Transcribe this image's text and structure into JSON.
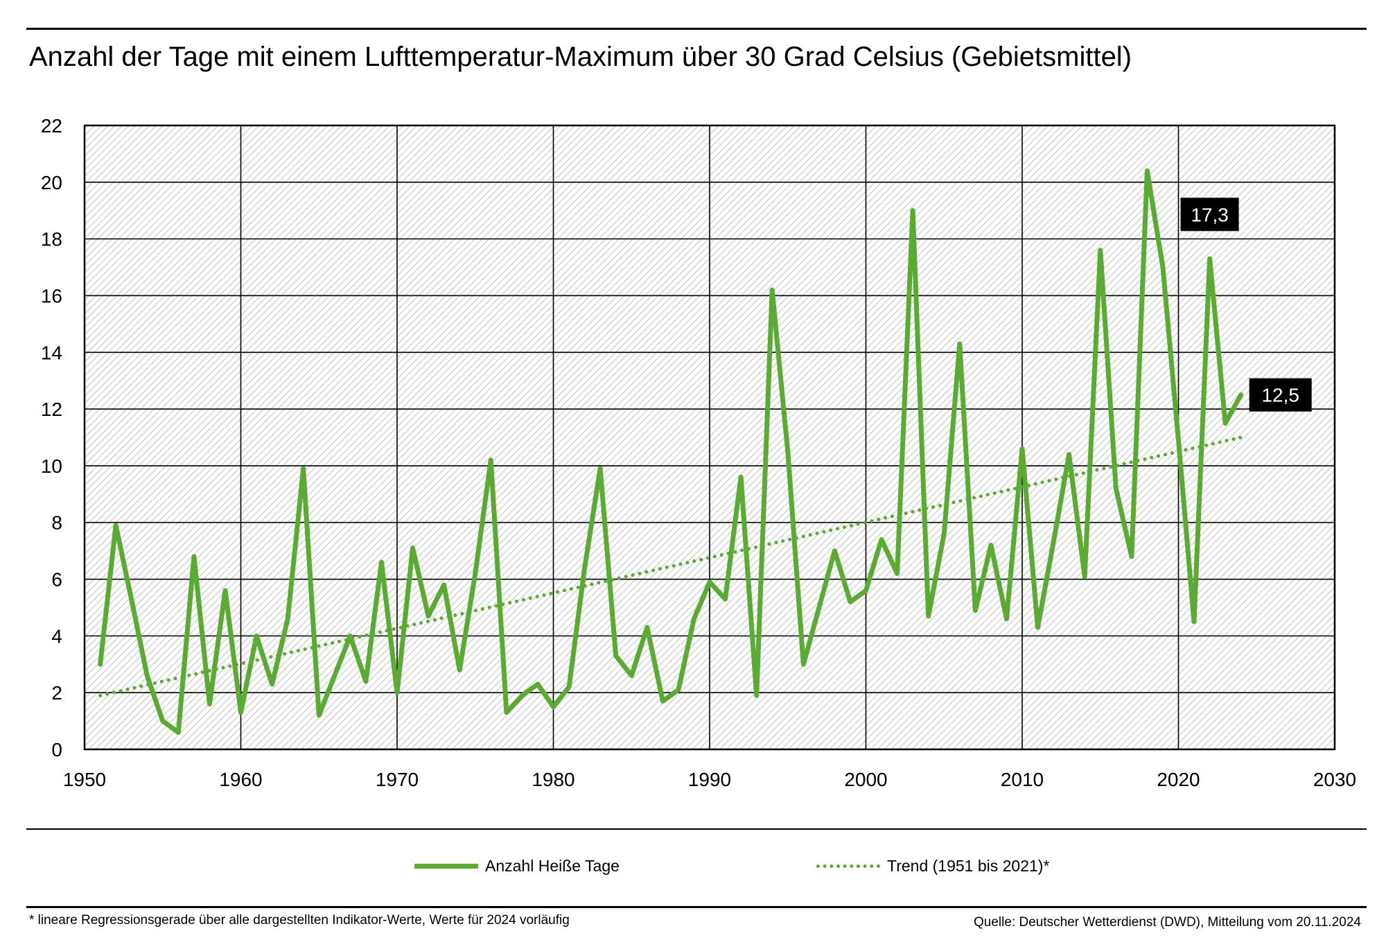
{
  "title": "Anzahl der Tage mit einem Lufttemperatur-Maximum über 30 Grad Celsius (Gebietsmittel)",
  "legend": {
    "main_label": "Anzahl Heiße Tage",
    "trend_label": "Trend (1951 bis 2021)*"
  },
  "footnote": "* lineare Regressionsgerade über alle dargestellten Indikator-Werte, Werte für 2024 vorläufig",
  "source": "Quelle: Deutscher Wetterdienst (DWD), Mitteilung vom 20.11.2024",
  "colors": {
    "series": "#5aab32",
    "label_box": "#000000",
    "grid": "#000000"
  },
  "chart_data": {
    "type": "line",
    "title": "Anzahl der Tage mit einem Lufttemperatur-Maximum über 30 Grad Celsius (Gebietsmittel)",
    "xlim": [
      1950,
      2030
    ],
    "ylim": [
      0,
      22
    ],
    "x_ticks": [
      1950,
      1960,
      1970,
      1980,
      1990,
      2000,
      2010,
      2020,
      2030
    ],
    "y_ticks": [
      0,
      2,
      4,
      6,
      8,
      10,
      12,
      14,
      16,
      18,
      20,
      22
    ],
    "grid": true,
    "legend_position": "bottom",
    "series": [
      {
        "name": "Anzahl Heiße Tage",
        "style": "solid",
        "x": [
          1951,
          1952,
          1953,
          1954,
          1955,
          1956,
          1957,
          1958,
          1959,
          1960,
          1961,
          1962,
          1963,
          1964,
          1965,
          1966,
          1967,
          1968,
          1969,
          1970,
          1971,
          1972,
          1973,
          1974,
          1975,
          1976,
          1977,
          1978,
          1979,
          1980,
          1981,
          1982,
          1983,
          1984,
          1985,
          1986,
          1987,
          1988,
          1989,
          1990,
          1991,
          1992,
          1993,
          1994,
          1995,
          1996,
          1997,
          1998,
          1999,
          2000,
          2001,
          2002,
          2003,
          2004,
          2005,
          2006,
          2007,
          2008,
          2009,
          2010,
          2011,
          2012,
          2013,
          2014,
          2015,
          2016,
          2017,
          2018,
          2019,
          2020,
          2021,
          2022,
          2023,
          2024
        ],
        "values": [
          3.0,
          7.9,
          5.3,
          2.6,
          1.0,
          0.6,
          6.8,
          1.6,
          5.6,
          1.3,
          4.0,
          2.3,
          4.6,
          9.9,
          1.2,
          2.6,
          4.0,
          2.4,
          6.6,
          2.0,
          7.1,
          4.7,
          5.8,
          2.8,
          6.2,
          10.2,
          1.3,
          1.9,
          2.3,
          1.5,
          2.2,
          6.4,
          9.9,
          3.3,
          2.6,
          4.3,
          1.7,
          2.1,
          4.6,
          5.9,
          5.3,
          9.6,
          1.9,
          16.2,
          10.5,
          3.0,
          5.0,
          7.0,
          5.2,
          5.6,
          7.4,
          6.2,
          19.0,
          4.7,
          7.6,
          14.3,
          4.9,
          7.2,
          4.6,
          10.6,
          4.3,
          7.3,
          10.4,
          6.1,
          17.6,
          9.2,
          6.8,
          20.4,
          17.0,
          10.9,
          4.5,
          17.3,
          11.5,
          12.5
        ]
      },
      {
        "name": "Trend (1951 bis 2021)*",
        "style": "dotted",
        "x": [
          1951,
          2024
        ],
        "values": [
          1.9,
          11.0
        ]
      }
    ],
    "annotations": [
      {
        "x": 2022,
        "value": 17.3,
        "text": "17,3"
      },
      {
        "x": 2024,
        "value": 12.5,
        "text": "12,5"
      }
    ]
  }
}
